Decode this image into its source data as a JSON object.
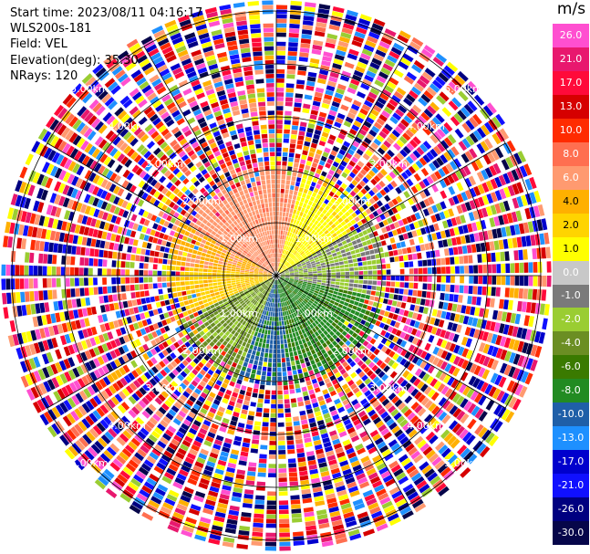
{
  "info": {
    "start_time": "Start time: 2023/08/11 04:16:17",
    "instrument": "WLS200s-181",
    "field": "Field: VEL",
    "elevation": "Elevation(deg): 35.30",
    "nrays": "NRays: 120"
  },
  "range_rings": [
    "1.00km",
    "2.00km",
    "3.00km",
    "4.00km",
    "5.00km"
  ],
  "colorbar": {
    "unit": "m/s",
    "labels": [
      "26.0",
      "21.0",
      "17.0",
      "13.0",
      "10.0",
      "8.0",
      "6.0",
      "4.0",
      "2.0",
      "1.0",
      "0.0",
      "-1.0",
      "-2.0",
      "-4.0",
      "-6.0",
      "-8.0",
      "-10.0",
      "-13.0",
      "-17.0",
      "-21.0",
      "-26.0",
      "-30.0"
    ],
    "colors": [
      "#ff4fd0",
      "#e8186e",
      "#ff0a3a",
      "#d60000",
      "#ff2b00",
      "#ff6f50",
      "#ff9a70",
      "#ffb000",
      "#ffd400",
      "#ffff00",
      "#c8c8c8",
      "#7a7a7a",
      "#9acd32",
      "#6b8e23",
      "#3a7a00",
      "#228b22",
      "#1f5fa8",
      "#1e90ff",
      "#0000cd",
      "#1010ff",
      "#000080",
      "#06064a"
    ]
  }
}
